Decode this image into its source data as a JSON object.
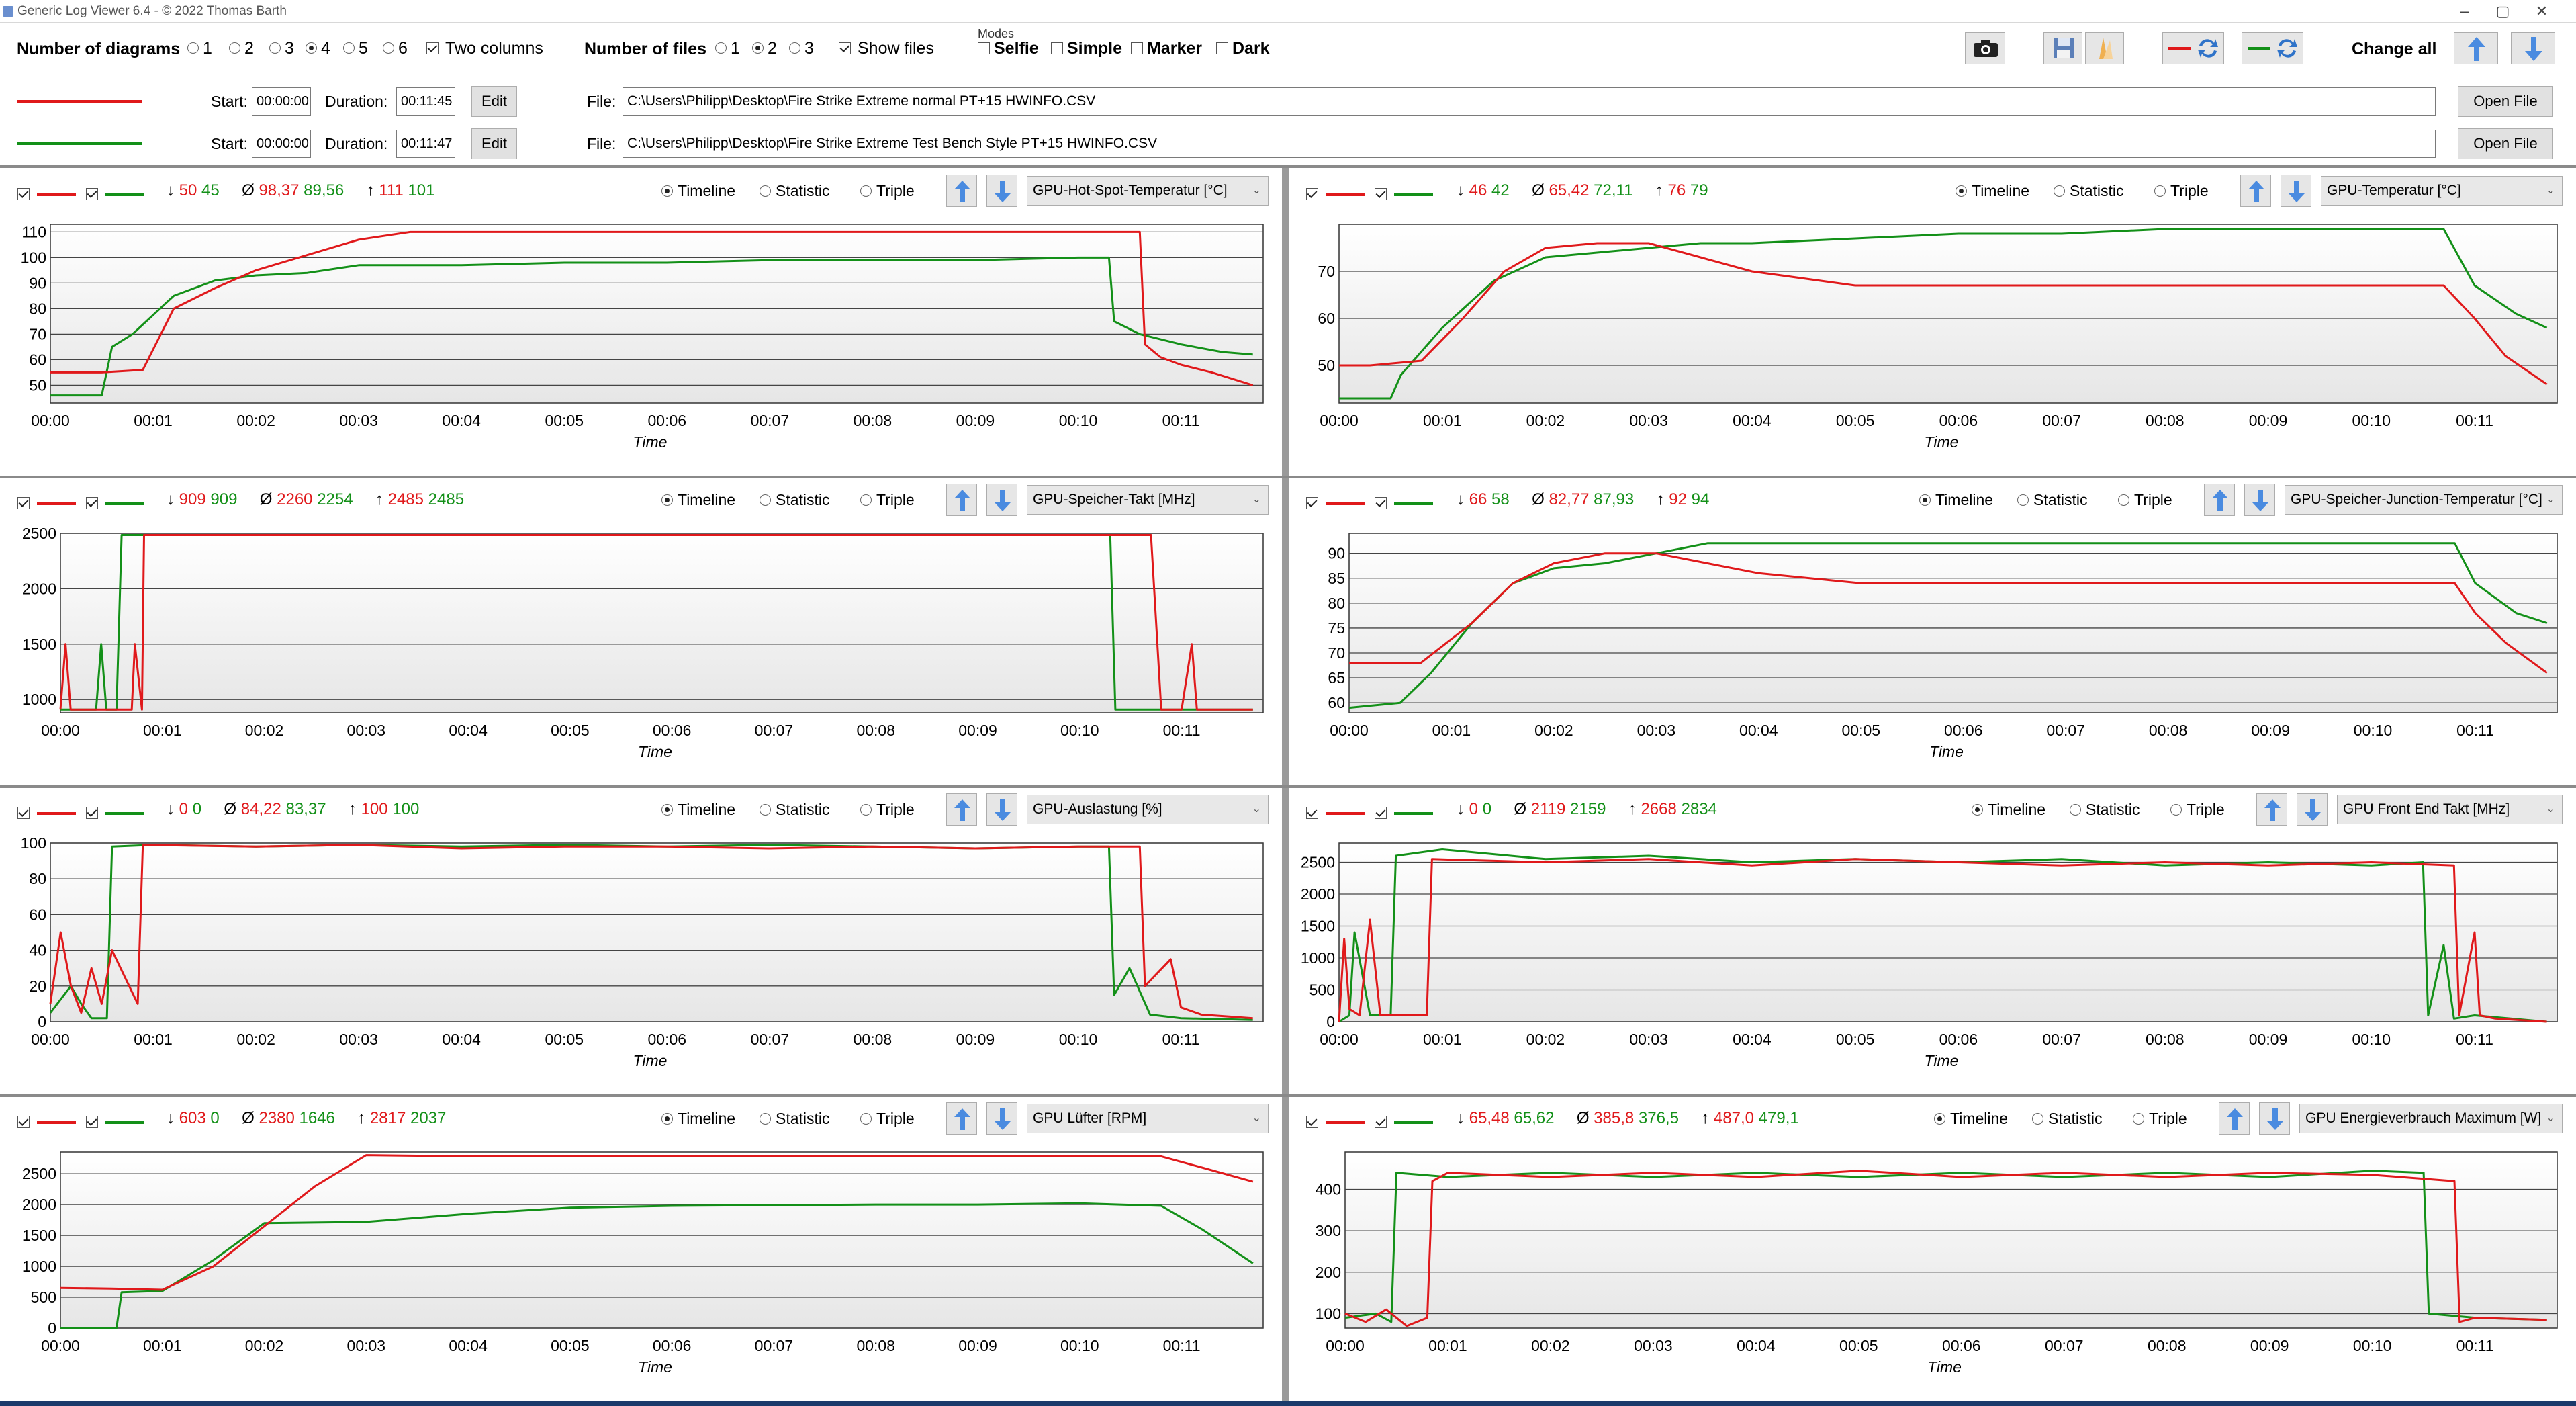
{
  "window": {
    "title": "Generic Log Viewer 6.4 - © 2022 Thomas Barth"
  },
  "toolbar": {
    "num_diagrams_label": "Number of diagrams",
    "diagram_options": [
      "1",
      "2",
      "3",
      "4",
      "5",
      "6"
    ],
    "diagram_selected": "4",
    "two_columns_label": "Two columns",
    "two_columns_checked": true,
    "num_files_label": "Number of files",
    "file_options": [
      "1",
      "2",
      "3"
    ],
    "file_selected": "2",
    "show_files_label": "Show files",
    "show_files_checked": true,
    "modes_label": "Modes",
    "modes": [
      {
        "label": "Selfie",
        "checked": false
      },
      {
        "label": "Simple",
        "checked": false
      },
      {
        "label": "Marker",
        "checked": false
      },
      {
        "label": "Dark",
        "checked": false
      }
    ],
    "change_all_label": "Change all",
    "icons": [
      "camera-icon",
      "save-icon",
      "palette-icon",
      "swap-red-icon",
      "swap-green-icon",
      "arrow-up-icon",
      "arrow-down-icon"
    ]
  },
  "colors": {
    "series1": "#e0191b",
    "series2": "#139018",
    "grid": "#444444",
    "plot_bg_bottom": "#e6e6e6"
  },
  "files": [
    {
      "color": "#e0191b",
      "start_label": "Start:",
      "start": "00:00:00",
      "duration_label": "Duration:",
      "duration": "00:11:45",
      "edit_label": "Edit",
      "file_label": "File:",
      "path": "C:\\Users\\Philipp\\Desktop\\Fire Strike Extreme normal PT+15 HWINFO.CSV",
      "open_label": "Open File"
    },
    {
      "color": "#139018",
      "start_label": "Start:",
      "start": "00:00:00",
      "duration_label": "Duration:",
      "duration": "00:11:47",
      "edit_label": "Edit",
      "file_label": "File:",
      "path": "C:\\Users\\Philipp\\Desktop\\Fire Strike Extreme Test Bench Style PT+15 HWINFO.CSV",
      "open_label": "Open File"
    }
  ],
  "panel_common": {
    "view_modes": [
      "Timeline",
      "Statistic",
      "Triple"
    ],
    "view_selected": "Timeline",
    "min_symbol": "↓",
    "avg_symbol": "Ø",
    "max_symbol": "↑",
    "xlabel": "Time",
    "xticks": [
      "00:00",
      "00:01",
      "00:02",
      "00:03",
      "00:04",
      "00:05",
      "00:06",
      "00:07",
      "00:08",
      "00:09",
      "00:10",
      "00:11"
    ]
  },
  "panels": [
    {
      "sensor": "GPU-Hot-Spot-Temperatur [°C]",
      "min": [
        "50",
        "45"
      ],
      "avg": [
        "98,37",
        "89,56"
      ],
      "max": [
        "111",
        "101"
      ]
    },
    {
      "sensor": "GPU-Temperatur [°C]",
      "min": [
        "46",
        "42"
      ],
      "avg": [
        "65,42",
        "72,11"
      ],
      "max": [
        "76",
        "79"
      ]
    },
    {
      "sensor": "GPU-Speicher-Takt [MHz]",
      "min": [
        "909",
        "909"
      ],
      "avg": [
        "2260",
        "2254"
      ],
      "max": [
        "2485",
        "2485"
      ]
    },
    {
      "sensor": "GPU-Speicher-Junction-Temperatur [°C]",
      "min": [
        "66",
        "58"
      ],
      "avg": [
        "82,77",
        "87,93"
      ],
      "max": [
        "92",
        "94"
      ]
    },
    {
      "sensor": "GPU-Auslastung [%]",
      "min": [
        "0",
        "0"
      ],
      "avg": [
        "84,22",
        "83,37"
      ],
      "max": [
        "100",
        "100"
      ]
    },
    {
      "sensor": "GPU Front End Takt [MHz]",
      "min": [
        "0",
        "0"
      ],
      "avg": [
        "2119",
        "2159"
      ],
      "max": [
        "2668",
        "2834"
      ]
    },
    {
      "sensor": "GPU Lüfter [RPM]",
      "min": [
        "603",
        "0"
      ],
      "avg": [
        "2380",
        "1646"
      ],
      "max": [
        "2817",
        "2037"
      ]
    },
    {
      "sensor": "GPU Energieverbrauch Maximum [W]",
      "min": [
        "65,48",
        "65,62"
      ],
      "avg": [
        "385,8",
        "376,5"
      ],
      "max": [
        "487,0",
        "479,1"
      ]
    }
  ],
  "chart_data": [
    {
      "type": "line",
      "ylabel": "GPU-Hot-Spot-Temperatur [°C]",
      "xlabel": "Time",
      "ylim": [
        43,
        113
      ],
      "yticks": [
        50,
        60,
        70,
        80,
        90,
        100,
        110
      ],
      "xlim": [
        0,
        11.8
      ],
      "series": [
        {
          "name": "Fire Strike Extreme normal PT+15 HWINFO.CSV",
          "x": [
            0,
            0.5,
            0.9,
            1.2,
            1.6,
            2,
            2.5,
            3,
            3.5,
            4,
            5,
            6,
            7,
            8,
            9,
            10,
            10.6,
            10.65,
            10.8,
            11,
            11.3,
            11.7
          ],
          "y": [
            55,
            55,
            56,
            80,
            88,
            95,
            101,
            107,
            110,
            110,
            110,
            110,
            110,
            110,
            110,
            110,
            110,
            66,
            61,
            58,
            55,
            50
          ]
        },
        {
          "name": "Fire Strike Extreme Test Bench Style PT+15 HWINFO.CSV",
          "x": [
            0,
            0.5,
            0.6,
            0.8,
            1.2,
            1.6,
            2,
            2.5,
            3,
            3.5,
            4,
            5,
            6,
            7,
            8,
            9,
            10,
            10.3,
            10.35,
            10.6,
            11,
            11.4,
            11.7
          ],
          "y": [
            46,
            46,
            65,
            70,
            85,
            91,
            93,
            94,
            97,
            97,
            97,
            98,
            98,
            99,
            99,
            99,
            100,
            100,
            75,
            70,
            66,
            63,
            62
          ]
        }
      ]
    },
    {
      "type": "line",
      "ylabel": "GPU-Temperatur [°C]",
      "xlabel": "Time",
      "ylim": [
        42,
        80
      ],
      "yticks": [
        50,
        60,
        70
      ],
      "xlim": [
        0,
        11.8
      ],
      "series": [
        {
          "name": "Fire Strike Extreme normal PT+15 HWINFO.CSV",
          "x": [
            0,
            0.3,
            0.8,
            1.2,
            1.6,
            2,
            2.5,
            3,
            3.5,
            4,
            5,
            6,
            7,
            8,
            9,
            10,
            10.7,
            11,
            11.3,
            11.7
          ],
          "y": [
            50,
            50,
            51,
            60,
            70,
            75,
            76,
            76,
            73,
            70,
            67,
            67,
            67,
            67,
            67,
            67,
            67,
            60,
            52,
            46
          ]
        },
        {
          "name": "Fire Strike Extreme Test Bench Style PT+15 HWINFO.CSV",
          "x": [
            0,
            0.5,
            0.6,
            1,
            1.5,
            2,
            2.5,
            3,
            3.5,
            4,
            5,
            6,
            7,
            8,
            9,
            10,
            10.7,
            11,
            11.4,
            11.7
          ],
          "y": [
            43,
            43,
            48,
            58,
            68,
            73,
            74,
            75,
            76,
            76,
            77,
            78,
            78,
            79,
            79,
            79,
            79,
            67,
            61,
            58
          ]
        }
      ]
    },
    {
      "type": "line",
      "ylabel": "GPU-Speicher-Takt [MHz]",
      "xlabel": "Time",
      "ylim": [
        880,
        2500
      ],
      "yticks": [
        1000,
        1500,
        2000,
        2500
      ],
      "xlim": [
        0,
        11.8
      ],
      "series": [
        {
          "name": "Fire Strike Extreme normal PT+15 HWINFO.CSV",
          "x": [
            0,
            0.05,
            0.1,
            0.7,
            0.73,
            0.8,
            0.82,
            0.85,
            0.9,
            10.5,
            10.6,
            10.7,
            10.8,
            11,
            11.1,
            11.15,
            11.2,
            11.3,
            11.7
          ],
          "y": [
            909,
            1500,
            909,
            909,
            1500,
            909,
            2485,
            2485,
            2485,
            2485,
            2485,
            2485,
            909,
            909,
            1500,
            909,
            909,
            909,
            909
          ]
        },
        {
          "name": "Fire Strike Extreme Test Bench Style PT+15 HWINFO.CSV",
          "x": [
            0,
            0.35,
            0.4,
            0.45,
            0.55,
            0.6,
            1,
            5,
            10,
            10.3,
            10.35,
            10.5,
            11,
            11.7
          ],
          "y": [
            909,
            909,
            1500,
            909,
            909,
            2485,
            2485,
            2485,
            2485,
            2485,
            909,
            909,
            909,
            909
          ]
        }
      ]
    },
    {
      "type": "line",
      "ylabel": "GPU-Speicher-Junction-Temperatur [°C]",
      "xlabel": "Time",
      "ylim": [
        58,
        94
      ],
      "yticks": [
        60,
        65,
        70,
        75,
        80,
        85,
        90
      ],
      "xlim": [
        0,
        11.8
      ],
      "series": [
        {
          "name": "Fire Strike Extreme normal PT+15 HWINFO.CSV",
          "x": [
            0,
            0.7,
            1.2,
            1.6,
            2,
            2.5,
            3,
            3.5,
            4,
            5,
            6,
            7,
            8,
            9,
            10,
            10.8,
            11,
            11.3,
            11.7
          ],
          "y": [
            68,
            68,
            76,
            84,
            88,
            90,
            90,
            88,
            86,
            84,
            84,
            84,
            84,
            84,
            84,
            84,
            78,
            72,
            66
          ]
        },
        {
          "name": "Fire Strike Extreme Test Bench Style PT+15 HWINFO.CSV",
          "x": [
            0,
            0.5,
            0.8,
            1.2,
            1.6,
            2,
            2.5,
            3,
            3.5,
            4,
            5,
            6,
            7,
            8,
            9,
            10,
            10.8,
            11,
            11.4,
            11.7
          ],
          "y": [
            59,
            60,
            66,
            76,
            84,
            87,
            88,
            90,
            92,
            92,
            92,
            92,
            92,
            92,
            92,
            92,
            92,
            84,
            78,
            76
          ]
        }
      ]
    },
    {
      "type": "line",
      "ylabel": "GPU-Auslastung [%]",
      "xlabel": "Time",
      "ylim": [
        0,
        100
      ],
      "yticks": [
        0,
        20,
        40,
        60,
        80,
        100
      ],
      "xlim": [
        0,
        11.8
      ],
      "series": [
        {
          "name": "Fire Strike Extreme normal PT+15 HWINFO.CSV",
          "x": [
            0,
            0.1,
            0.2,
            0.3,
            0.4,
            0.5,
            0.6,
            0.85,
            0.9,
            2,
            3,
            4,
            5,
            6,
            7,
            8,
            9,
            10,
            10.6,
            10.65,
            10.9,
            11,
            11.2,
            11.7
          ],
          "y": [
            10,
            50,
            20,
            5,
            30,
            10,
            40,
            10,
            99,
            98,
            99,
            97,
            98,
            98,
            97,
            98,
            97,
            98,
            98,
            20,
            35,
            8,
            4,
            2
          ]
        },
        {
          "name": "Fire Strike Extreme Test Bench Style PT+15 HWINFO.CSV",
          "x": [
            0,
            0.2,
            0.3,
            0.4,
            0.55,
            0.6,
            1,
            2,
            3,
            4,
            5,
            6,
            7,
            8,
            9,
            10,
            10.3,
            10.35,
            10.5,
            10.7,
            11,
            11.7
          ],
          "y": [
            5,
            20,
            10,
            2,
            2,
            98,
            99,
            98,
            99,
            98,
            99,
            98,
            99,
            98,
            97,
            98,
            98,
            15,
            30,
            4,
            2,
            1
          ]
        }
      ]
    },
    {
      "type": "line",
      "ylabel": "GPU Front End Takt [MHz]",
      "xlabel": "Time",
      "ylim": [
        0,
        2800
      ],
      "yticks": [
        0,
        500,
        1000,
        1500,
        2000,
        2500
      ],
      "xlim": [
        0,
        11.8
      ],
      "series": [
        {
          "name": "Fire Strike Extreme normal PT+15 HWINFO.CSV",
          "x": [
            0,
            0.05,
            0.1,
            0.2,
            0.3,
            0.4,
            0.45,
            0.5,
            0.85,
            0.9,
            2,
            3,
            4,
            5,
            6,
            7,
            8,
            9,
            10,
            10.8,
            10.85,
            11,
            11.05,
            11.2,
            11.7
          ],
          "y": [
            0,
            1300,
            200,
            100,
            1600,
            100,
            100,
            100,
            100,
            2550,
            2500,
            2550,
            2450,
            2550,
            2500,
            2450,
            2500,
            2450,
            2500,
            2450,
            100,
            1400,
            100,
            50,
            0
          ]
        },
        {
          "name": "Fire Strike Extreme Test Bench Style PT+15 HWINFO.CSV",
          "x": [
            0,
            0.1,
            0.15,
            0.3,
            0.5,
            0.55,
            1,
            2,
            3,
            4,
            5,
            6,
            7,
            8,
            9,
            10,
            10.5,
            10.55,
            10.7,
            10.8,
            11,
            11.7
          ],
          "y": [
            0,
            100,
            1400,
            100,
            100,
            2600,
            2700,
            2550,
            2600,
            2500,
            2550,
            2500,
            2550,
            2450,
            2500,
            2450,
            2500,
            100,
            1200,
            50,
            100,
            0
          ]
        }
      ]
    },
    {
      "type": "line",
      "ylabel": "GPU Lüfter [RPM]",
      "xlabel": "Time",
      "ylim": [
        0,
        2850
      ],
      "yticks": [
        0,
        500,
        1000,
        1500,
        2000,
        2500
      ],
      "xlim": [
        0,
        11.8
      ],
      "series": [
        {
          "name": "Fire Strike Extreme normal PT+15 HWINFO.CSV",
          "x": [
            0,
            0.5,
            1,
            1.5,
            2,
            2.5,
            3,
            3.5,
            4,
            5,
            6,
            7,
            8,
            9,
            10,
            10.8,
            11.2,
            11.7
          ],
          "y": [
            650,
            640,
            620,
            1000,
            1650,
            2300,
            2800,
            2790,
            2780,
            2780,
            2780,
            2780,
            2780,
            2780,
            2780,
            2780,
            2600,
            2370
          ]
        },
        {
          "name": "Fire Strike Extreme Test Bench Style PT+15 HWINFO.CSV",
          "x": [
            0,
            0.55,
            0.6,
            1,
            1.5,
            2,
            3,
            4,
            5,
            6,
            7,
            8,
            9,
            10,
            10.8,
            11.2,
            11.7
          ],
          "y": [
            0,
            0,
            580,
            600,
            1100,
            1700,
            1720,
            1850,
            1950,
            1980,
            1990,
            2000,
            2000,
            2020,
            1980,
            1600,
            1050
          ]
        }
      ]
    },
    {
      "type": "line",
      "ylabel": "GPU Energieverbrauch Maximum [W]",
      "xlabel": "Time",
      "ylim": [
        65,
        490
      ],
      "yticks": [
        100,
        200,
        300,
        400
      ],
      "xlim": [
        0,
        11.8
      ],
      "series": [
        {
          "name": "Fire Strike Extreme normal PT+15 HWINFO.CSV",
          "x": [
            0,
            0.2,
            0.4,
            0.6,
            0.8,
            0.85,
            1,
            2,
            3,
            4,
            5,
            6,
            7,
            8,
            9,
            10,
            10.8,
            10.85,
            11,
            11.7
          ],
          "y": [
            100,
            80,
            110,
            70,
            90,
            420,
            440,
            430,
            440,
            430,
            445,
            430,
            440,
            430,
            440,
            435,
            420,
            80,
            90,
            85
          ]
        },
        {
          "name": "Fire Strike Extreme Test Bench Style PT+15 HWINFO.CSV",
          "x": [
            0,
            0.3,
            0.45,
            0.5,
            1,
            2,
            3,
            4,
            5,
            6,
            7,
            8,
            9,
            10,
            10.5,
            10.55,
            11,
            11.7
          ],
          "y": [
            90,
            100,
            80,
            440,
            430,
            440,
            430,
            440,
            430,
            440,
            430,
            440,
            430,
            445,
            440,
            100,
            90,
            85
          ]
        }
      ]
    }
  ]
}
